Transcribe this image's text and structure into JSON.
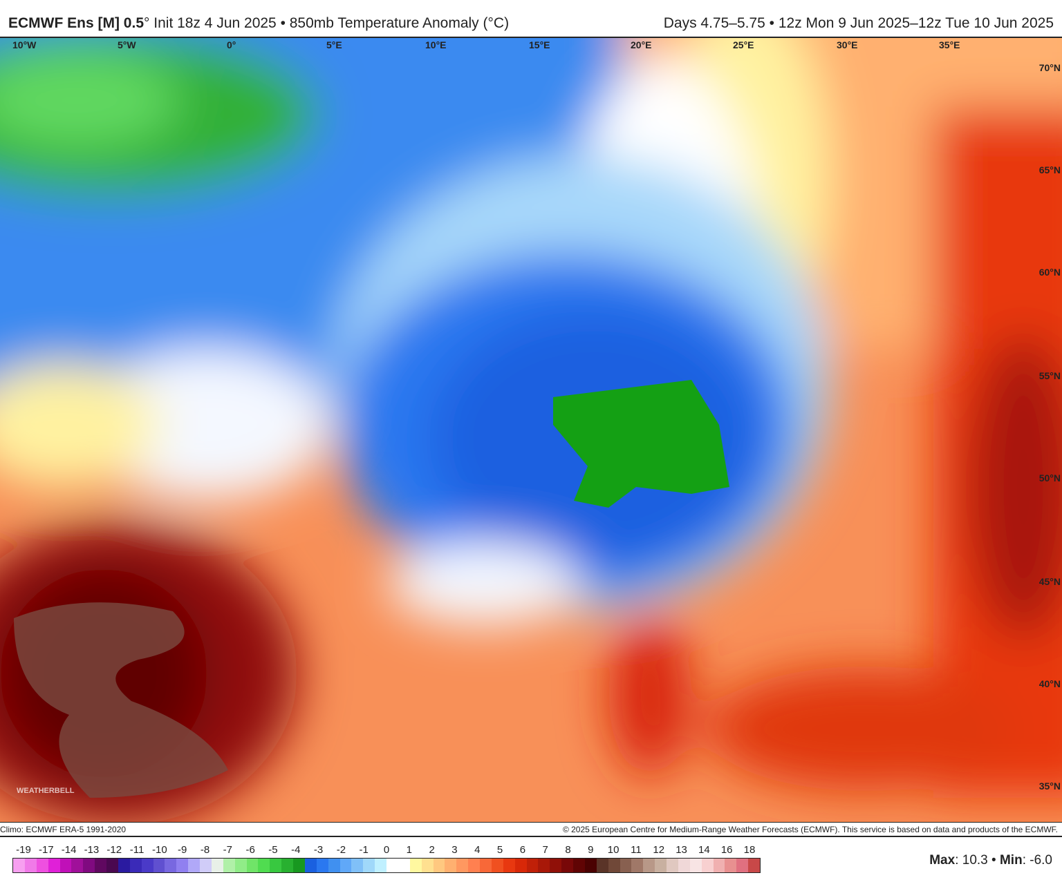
{
  "header": {
    "model": "ECMWF Ens [M] 0.5",
    "degree": "°",
    "init": "Init 18z 4 Jun 2025 • 850mb Temperature Anomaly (°C)",
    "valid": "Days 4.75–5.75 • 12z Mon 9 Jun 2025–12z Tue 10 Jun 2025"
  },
  "map": {
    "lon_labels": [
      "10°W",
      "5°W",
      "0°",
      "5°E",
      "10°E",
      "15°E",
      "20°E",
      "25°E",
      "30°E",
      "35°E"
    ],
    "lat_labels": [
      "70°N",
      "65°N",
      "60°N",
      "55°N",
      "50°N",
      "45°N",
      "40°N",
      "35°N"
    ],
    "watermark": "WEATHERBELL"
  },
  "footer": {
    "climo": "Climo: ECMWF ERA-5 1991-2020",
    "copyright": "© 2025 European Centre for Medium-Range Weather Forecasts (ECMWF). This service is based on data and products of the ECMWF."
  },
  "colorbar": {
    "ticks": [
      "-19",
      "-17",
      "-14",
      "-13",
      "-12",
      "-11",
      "-10",
      "-9",
      "-8",
      "-7",
      "-6",
      "-5",
      "-4",
      "-3",
      "-2",
      "-1",
      "0",
      "1",
      "2",
      "3",
      "4",
      "5",
      "6",
      "7",
      "8",
      "9",
      "10",
      "11",
      "12",
      "13",
      "14",
      "16",
      "18"
    ],
    "colors": [
      "#f7a0f0",
      "#f07ae8",
      "#ee50e0",
      "#e020d8",
      "#c010b8",
      "#a0109a",
      "#800a80",
      "#600860",
      "#4a0850",
      "#2a1aa0",
      "#3a2ab8",
      "#4a3ac8",
      "#6050d0",
      "#7868e0",
      "#9080f0",
      "#b0a8f8",
      "#d0ccf8",
      "#e8f0e8",
      "#b0f0a8",
      "#90ec88",
      "#70e468",
      "#50dc50",
      "#38c840",
      "#28b030",
      "#189820",
      "#1a60e0",
      "#2a78f0",
      "#4090f0",
      "#60a8f8",
      "#80c0f8",
      "#a0d8fa",
      "#c0f0ff",
      "#ffffff",
      "#ffffff",
      "#fff8a0",
      "#ffe090",
      "#ffc880",
      "#ffb070",
      "#ff9860",
      "#ff8050",
      "#f86838",
      "#f05020",
      "#e83810",
      "#d82808",
      "#c02008",
      "#a81808",
      "#901008",
      "#780808",
      "#600404",
      "#4a0202",
      "#5a3428",
      "#704838",
      "#886050",
      "#a07868",
      "#b89888",
      "#c8b0a0",
      "#e0c8c0",
      "#f0d8d8",
      "#f8e4e4",
      "#f8d0d0",
      "#f0b0b0",
      "#e89090",
      "#e07080",
      "#c84848"
    ]
  },
  "stats": {
    "max_label": "Max",
    "max": "10.3",
    "min_label": "Min",
    "min": "-6.0"
  }
}
